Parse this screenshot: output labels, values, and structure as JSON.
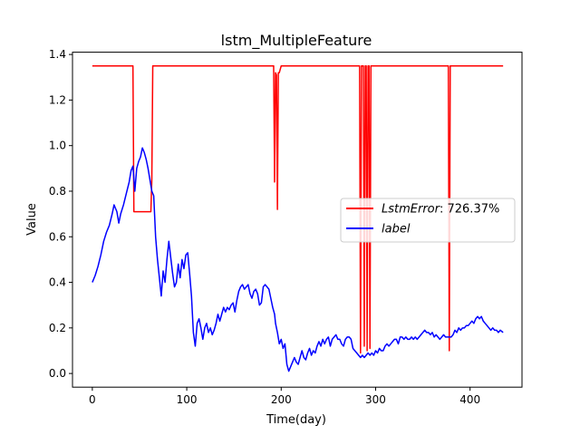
{
  "chart_data": {
    "type": "line",
    "title": "lstm_MultipleFeature",
    "xlabel": "Time(day)",
    "ylabel": "Value",
    "xlim": [
      -21,
      455
    ],
    "ylim": [
      -0.06,
      1.41
    ],
    "xticks": [
      0,
      100,
      200,
      300,
      400
    ],
    "yticks": [
      0.0,
      0.2,
      0.4,
      0.6,
      0.8,
      1.0,
      1.2,
      1.4
    ],
    "xtick_labels": [
      "0",
      "100",
      "200",
      "300",
      "400"
    ],
    "ytick_labels": [
      "0.0",
      "0.2",
      "0.4",
      "0.6",
      "0.8",
      "1.0",
      "1.2",
      "1.4"
    ],
    "grid": false,
    "legend_placement": "center-right",
    "series": [
      {
        "name": "LstmError: 726.37%",
        "legend_label": "LstmError",
        "legend_value": ": 726.37%",
        "color": "#ff0000",
        "points": [
          [
            0,
            1.35
          ],
          [
            43,
            1.35
          ],
          [
            44,
            0.71
          ],
          [
            62,
            0.71
          ],
          [
            63,
            0.85
          ],
          [
            64,
            1.35
          ],
          [
            192,
            1.35
          ],
          [
            193,
            0.84
          ],
          [
            194,
            1.32
          ],
          [
            195,
            1.31
          ],
          [
            196,
            0.72
          ],
          [
            197,
            1.32
          ],
          [
            198,
            1.32
          ],
          [
            200,
            1.35
          ],
          [
            283,
            1.35
          ],
          [
            284,
            0.09
          ],
          [
            285,
            1.35
          ],
          [
            287,
            1.35
          ],
          [
            288,
            0.12
          ],
          [
            289,
            1.35
          ],
          [
            290,
            1.35
          ],
          [
            291,
            0.1
          ],
          [
            292,
            1.35
          ],
          [
            293,
            1.35
          ],
          [
            294,
            0.11
          ],
          [
            295,
            1.35
          ],
          [
            377,
            1.35
          ],
          [
            378,
            0.1
          ],
          [
            379,
            1.35
          ],
          [
            435,
            1.35
          ]
        ]
      },
      {
        "name": "label",
        "legend_label": "label",
        "legend_value": "",
        "color": "#0000ff",
        "points": [
          [
            0,
            0.4
          ],
          [
            3,
            0.43
          ],
          [
            6,
            0.47
          ],
          [
            9,
            0.52
          ],
          [
            12,
            0.58
          ],
          [
            15,
            0.62
          ],
          [
            18,
            0.65
          ],
          [
            21,
            0.7
          ],
          [
            23,
            0.74
          ],
          [
            26,
            0.71
          ],
          [
            28,
            0.66
          ],
          [
            30,
            0.7
          ],
          [
            33,
            0.74
          ],
          [
            36,
            0.79
          ],
          [
            39,
            0.84
          ],
          [
            41,
            0.89
          ],
          [
            43,
            0.91
          ],
          [
            45,
            0.8
          ],
          [
            47,
            0.9
          ],
          [
            49,
            0.93
          ],
          [
            51,
            0.95
          ],
          [
            53,
            0.99
          ],
          [
            55,
            0.97
          ],
          [
            57,
            0.94
          ],
          [
            59,
            0.9
          ],
          [
            61,
            0.85
          ],
          [
            63,
            0.8
          ],
          [
            65,
            0.78
          ],
          [
            67,
            0.6
          ],
          [
            69,
            0.5
          ],
          [
            71,
            0.42
          ],
          [
            73,
            0.34
          ],
          [
            75,
            0.45
          ],
          [
            77,
            0.4
          ],
          [
            79,
            0.5
          ],
          [
            81,
            0.58
          ],
          [
            83,
            0.51
          ],
          [
            85,
            0.44
          ],
          [
            87,
            0.38
          ],
          [
            89,
            0.4
          ],
          [
            91,
            0.48
          ],
          [
            93,
            0.42
          ],
          [
            95,
            0.5
          ],
          [
            97,
            0.46
          ],
          [
            99,
            0.52
          ],
          [
            101,
            0.53
          ],
          [
            103,
            0.44
          ],
          [
            105,
            0.34
          ],
          [
            107,
            0.18
          ],
          [
            109,
            0.12
          ],
          [
            111,
            0.22
          ],
          [
            113,
            0.24
          ],
          [
            115,
            0.2
          ],
          [
            117,
            0.15
          ],
          [
            119,
            0.2
          ],
          [
            121,
            0.22
          ],
          [
            123,
            0.18
          ],
          [
            125,
            0.2
          ],
          [
            127,
            0.17
          ],
          [
            129,
            0.19
          ],
          [
            131,
            0.22
          ],
          [
            133,
            0.26
          ],
          [
            135,
            0.23
          ],
          [
            137,
            0.26
          ],
          [
            139,
            0.29
          ],
          [
            141,
            0.27
          ],
          [
            143,
            0.29
          ],
          [
            145,
            0.28
          ],
          [
            147,
            0.3
          ],
          [
            149,
            0.31
          ],
          [
            151,
            0.27
          ],
          [
            153,
            0.32
          ],
          [
            155,
            0.36
          ],
          [
            157,
            0.38
          ],
          [
            159,
            0.39
          ],
          [
            161,
            0.37
          ],
          [
            163,
            0.38
          ],
          [
            165,
            0.39
          ],
          [
            167,
            0.35
          ],
          [
            169,
            0.33
          ],
          [
            171,
            0.36
          ],
          [
            173,
            0.37
          ],
          [
            175,
            0.35
          ],
          [
            177,
            0.3
          ],
          [
            179,
            0.31
          ],
          [
            181,
            0.38
          ],
          [
            183,
            0.39
          ],
          [
            185,
            0.38
          ],
          [
            187,
            0.37
          ],
          [
            189,
            0.33
          ],
          [
            191,
            0.29
          ],
          [
            193,
            0.26
          ],
          [
            194,
            0.22
          ],
          [
            196,
            0.18
          ],
          [
            198,
            0.13
          ],
          [
            200,
            0.15
          ],
          [
            202,
            0.11
          ],
          [
            204,
            0.13
          ],
          [
            206,
            0.04
          ],
          [
            208,
            0.01
          ],
          [
            210,
            0.03
          ],
          [
            212,
            0.05
          ],
          [
            214,
            0.07
          ],
          [
            216,
            0.05
          ],
          [
            218,
            0.04
          ],
          [
            220,
            0.07
          ],
          [
            222,
            0.1
          ],
          [
            224,
            0.07
          ],
          [
            226,
            0.06
          ],
          [
            228,
            0.09
          ],
          [
            230,
            0.11
          ],
          [
            232,
            0.08
          ],
          [
            234,
            0.1
          ],
          [
            236,
            0.09
          ],
          [
            238,
            0.12
          ],
          [
            240,
            0.14
          ],
          [
            242,
            0.12
          ],
          [
            244,
            0.15
          ],
          [
            246,
            0.13
          ],
          [
            248,
            0.15
          ],
          [
            250,
            0.16
          ],
          [
            252,
            0.12
          ],
          [
            254,
            0.15
          ],
          [
            256,
            0.16
          ],
          [
            258,
            0.17
          ],
          [
            260,
            0.15
          ],
          [
            262,
            0.15
          ],
          [
            264,
            0.13
          ],
          [
            266,
            0.12
          ],
          [
            268,
            0.15
          ],
          [
            270,
            0.16
          ],
          [
            272,
            0.16
          ],
          [
            274,
            0.15
          ],
          [
            276,
            0.11
          ],
          [
            278,
            0.1
          ],
          [
            280,
            0.09
          ],
          [
            282,
            0.08
          ],
          [
            284,
            0.07
          ],
          [
            286,
            0.08
          ],
          [
            288,
            0.07
          ],
          [
            290,
            0.08
          ],
          [
            292,
            0.09
          ],
          [
            294,
            0.08
          ],
          [
            296,
            0.09
          ],
          [
            298,
            0.08
          ],
          [
            300,
            0.1
          ],
          [
            302,
            0.09
          ],
          [
            304,
            0.11
          ],
          [
            306,
            0.1
          ],
          [
            308,
            0.1
          ],
          [
            310,
            0.12
          ],
          [
            312,
            0.13
          ],
          [
            314,
            0.12
          ],
          [
            316,
            0.13
          ],
          [
            318,
            0.14
          ],
          [
            320,
            0.15
          ],
          [
            322,
            0.15
          ],
          [
            324,
            0.13
          ],
          [
            326,
            0.16
          ],
          [
            328,
            0.16
          ],
          [
            330,
            0.15
          ],
          [
            332,
            0.16
          ],
          [
            334,
            0.15
          ],
          [
            336,
            0.15
          ],
          [
            338,
            0.16
          ],
          [
            340,
            0.15
          ],
          [
            342,
            0.16
          ],
          [
            344,
            0.15
          ],
          [
            346,
            0.16
          ],
          [
            348,
            0.17
          ],
          [
            350,
            0.18
          ],
          [
            352,
            0.19
          ],
          [
            354,
            0.18
          ],
          [
            356,
            0.18
          ],
          [
            358,
            0.17
          ],
          [
            360,
            0.18
          ],
          [
            362,
            0.16
          ],
          [
            364,
            0.17
          ],
          [
            366,
            0.16
          ],
          [
            368,
            0.15
          ],
          [
            370,
            0.16
          ],
          [
            372,
            0.17
          ],
          [
            374,
            0.16
          ],
          [
            376,
            0.16
          ],
          [
            378,
            0.16
          ],
          [
            380,
            0.16
          ],
          [
            382,
            0.17
          ],
          [
            384,
            0.19
          ],
          [
            386,
            0.18
          ],
          [
            388,
            0.2
          ],
          [
            390,
            0.19
          ],
          [
            392,
            0.2
          ],
          [
            394,
            0.2
          ],
          [
            396,
            0.21
          ],
          [
            398,
            0.21
          ],
          [
            400,
            0.22
          ],
          [
            402,
            0.23
          ],
          [
            404,
            0.22
          ],
          [
            406,
            0.24
          ],
          [
            408,
            0.25
          ],
          [
            410,
            0.24
          ],
          [
            412,
            0.25
          ],
          [
            414,
            0.23
          ],
          [
            416,
            0.22
          ],
          [
            418,
            0.21
          ],
          [
            420,
            0.2
          ],
          [
            422,
            0.19
          ],
          [
            424,
            0.2
          ],
          [
            426,
            0.19
          ],
          [
            428,
            0.19
          ],
          [
            430,
            0.18
          ],
          [
            432,
            0.19
          ],
          [
            435,
            0.18
          ]
        ]
      }
    ]
  }
}
